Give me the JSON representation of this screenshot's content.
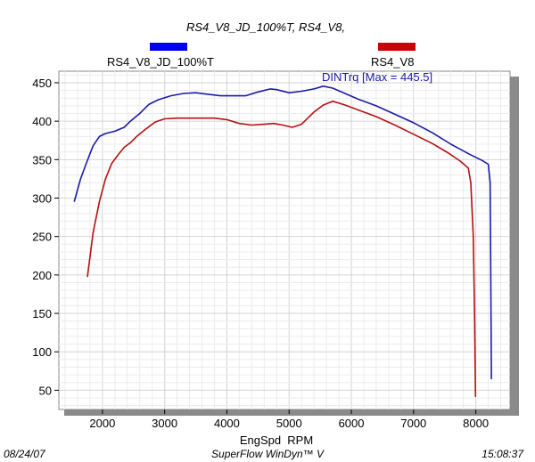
{
  "chart_data": {
    "type": "line",
    "title": "RS4_V8_JD_100%T, RS4_V8,",
    "xlabel": "EngSpd  RPM",
    "ylabel": "",
    "x_ticks": [
      2000,
      3000,
      4000,
      5000,
      6000,
      7000,
      8000
    ],
    "y_ticks": [
      50,
      100,
      150,
      200,
      250,
      300,
      350,
      400,
      450
    ],
    "xlim": [
      1300,
      8550
    ],
    "ylim": [
      25,
      465
    ],
    "grid": true,
    "annotation": "DINTrq [Max = 445.5]",
    "series": [
      {
        "name": "RS4_V8_JD_100%T",
        "color": "#1a1aa8",
        "legend_color": "#0000ee",
        "points": [
          [
            1550,
            296
          ],
          [
            1650,
            325
          ],
          [
            1750,
            347
          ],
          [
            1850,
            368
          ],
          [
            1950,
            380
          ],
          [
            2050,
            384
          ],
          [
            2200,
            387
          ],
          [
            2350,
            392
          ],
          [
            2450,
            400
          ],
          [
            2600,
            410
          ],
          [
            2750,
            422
          ],
          [
            2900,
            428
          ],
          [
            3100,
            433
          ],
          [
            3300,
            436
          ],
          [
            3500,
            437
          ],
          [
            3700,
            435
          ],
          [
            3900,
            433
          ],
          [
            4100,
            433
          ],
          [
            4300,
            433
          ],
          [
            4500,
            438
          ],
          [
            4700,
            442
          ],
          [
            4800,
            441
          ],
          [
            5000,
            437
          ],
          [
            5200,
            439
          ],
          [
            5400,
            442
          ],
          [
            5550,
            445.5
          ],
          [
            5700,
            443
          ],
          [
            5900,
            436
          ],
          [
            6100,
            429
          ],
          [
            6400,
            420
          ],
          [
            6700,
            409
          ],
          [
            7000,
            398
          ],
          [
            7300,
            385
          ],
          [
            7600,
            370
          ],
          [
            7900,
            357
          ],
          [
            8100,
            349
          ],
          [
            8200,
            344
          ],
          [
            8230,
            320
          ],
          [
            8240,
            200
          ],
          [
            8250,
            65
          ]
        ]
      },
      {
        "name": "RS4_V8",
        "color": "#b51010",
        "legend_color": "#cc0000",
        "points": [
          [
            1760,
            198
          ],
          [
            1850,
            255
          ],
          [
            1950,
            295
          ],
          [
            2050,
            325
          ],
          [
            2150,
            345
          ],
          [
            2250,
            356
          ],
          [
            2350,
            366
          ],
          [
            2450,
            372
          ],
          [
            2550,
            380
          ],
          [
            2700,
            390
          ],
          [
            2850,
            399
          ],
          [
            3000,
            403
          ],
          [
            3200,
            404
          ],
          [
            3500,
            404
          ],
          [
            3800,
            404
          ],
          [
            4000,
            402
          ],
          [
            4200,
            397
          ],
          [
            4400,
            395
          ],
          [
            4600,
            396
          ],
          [
            4750,
            397
          ],
          [
            4900,
            395
          ],
          [
            5050,
            392
          ],
          [
            5200,
            396
          ],
          [
            5400,
            412
          ],
          [
            5550,
            421
          ],
          [
            5700,
            426
          ],
          [
            5900,
            421
          ],
          [
            6100,
            415
          ],
          [
            6400,
            406
          ],
          [
            6700,
            395
          ],
          [
            7000,
            383
          ],
          [
            7300,
            371
          ],
          [
            7550,
            359
          ],
          [
            7750,
            348
          ],
          [
            7880,
            339
          ],
          [
            7920,
            320
          ],
          [
            7960,
            250
          ],
          [
            7980,
            150
          ],
          [
            7995,
            42
          ]
        ]
      }
    ]
  },
  "footer": {
    "date": "08/24/07",
    "software": "SuperFlow WinDyn™ V",
    "time": "15:08:37"
  }
}
